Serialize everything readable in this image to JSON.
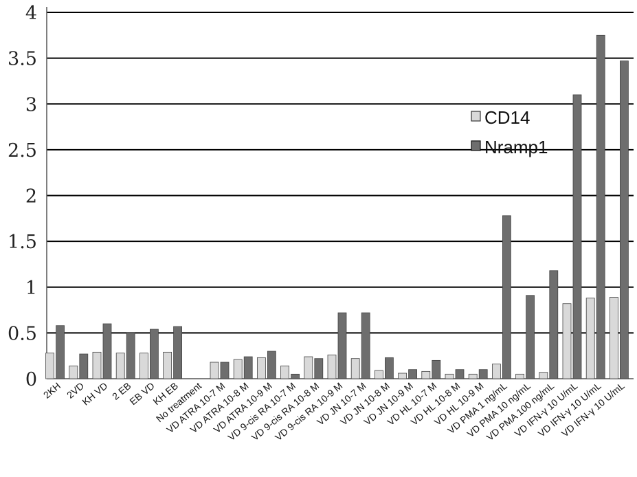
{
  "chart_data": {
    "type": "bar",
    "title": "",
    "xlabel": "",
    "ylabel": "",
    "ylim": [
      0,
      4
    ],
    "yticks": [
      "0",
      "0.5",
      "1",
      "1.5",
      "2",
      "2.5",
      "3",
      "3.5",
      "4"
    ],
    "grid": "horizontal",
    "legend_position": "right",
    "categories": [
      "2KH",
      "2VD",
      "KH VD",
      "2 EB",
      "EB VD",
      "KH EB",
      "No treatment",
      "VD ATRA 10-7 M",
      "VD ATRA 10-8 M",
      "VD ATRA 10-9 M",
      "VD 9-cis RA 10-7 M",
      "VD 9-cis RA 10-8 M",
      "VD 9-cis RA 10-9 M",
      "VD JN 10-7 M",
      "VD JN 10-8 M",
      "VD JN 10-9 M",
      "VD HL 10-7 M",
      "VD HL 10-8 M",
      "VD HL 10-9 M",
      "VD PMA 1 ng/mL",
      "VD PMA 10 ng/mL",
      "VD PMA 100 ng/mL",
      "VD IFN-γ 10 U/mL",
      "VD IFN-γ 10 U/mL",
      "VD IFN-γ 10 U/mL"
    ],
    "series": [
      {
        "name": "CD14",
        "color": "#d9d9d9",
        "values": [
          0.28,
          0.14,
          0.29,
          0.28,
          0.28,
          0.29,
          0,
          0.18,
          0.21,
          0.23,
          0.14,
          0.24,
          0.26,
          0.22,
          0.09,
          0.06,
          0.08,
          0.05,
          0.05,
          0.16,
          0.05,
          0.07,
          0.82,
          0.88,
          0.89
        ]
      },
      {
        "name": "Nramp1",
        "color": "#6e6e6e",
        "values": [
          0.58,
          0.27,
          0.6,
          0.5,
          0.54,
          0.57,
          0,
          0.18,
          0.24,
          0.3,
          0.05,
          0.22,
          0.72,
          0.72,
          0.23,
          0.1,
          0.2,
          0.1,
          0.1,
          1.78,
          0.91,
          1.18,
          3.1,
          3.75,
          3.47
        ]
      }
    ]
  },
  "style": {
    "grid_color": "#000000",
    "axis_color": "#555555",
    "bar_edge": "#444444"
  }
}
